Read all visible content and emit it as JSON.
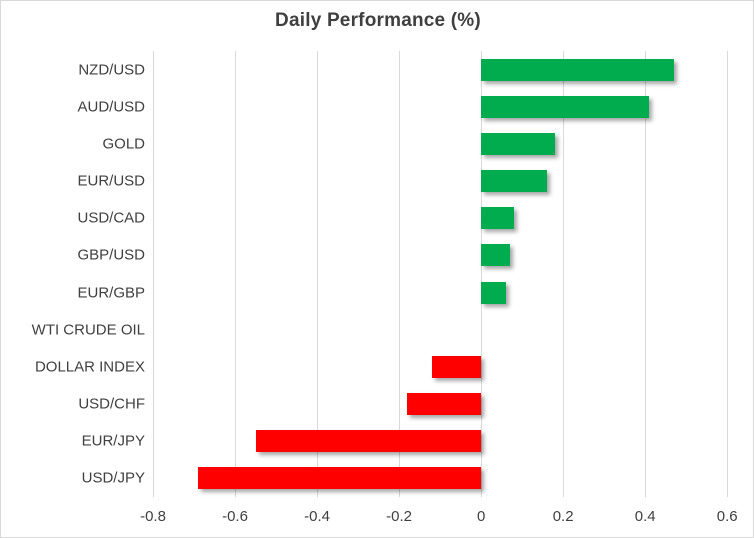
{
  "chart_data": {
    "type": "bar",
    "orientation": "horizontal",
    "title": "Daily Performance (%)",
    "categories": [
      "NZD/USD",
      "AUD/USD",
      "GOLD",
      "EUR/USD",
      "USD/CAD",
      "GBP/USD",
      "EUR/GBP",
      "WTI CRUDE OIL",
      "DOLLAR INDEX",
      "USD/CHF",
      "EUR/JPY",
      "USD/JPY"
    ],
    "values": [
      0.47,
      0.41,
      0.18,
      0.16,
      0.08,
      0.07,
      0.06,
      0.0,
      -0.12,
      -0.18,
      -0.55,
      -0.69
    ],
    "xlabel": "",
    "ylabel": "",
    "xlim": [
      -0.8,
      0.658
    ],
    "x_ticks": [
      -0.8,
      -0.6,
      -0.4,
      -0.2,
      0,
      0.2,
      0.4,
      0.6
    ],
    "x_tick_labels": [
      "-0.8",
      "-0.6",
      "-0.4",
      "-0.2",
      "0",
      "0.2",
      "0.4",
      "0.6"
    ],
    "grid": true,
    "legend": false,
    "positive_color": "#00AC4D",
    "negative_color": "#FF0000"
  },
  "colors": {
    "title_text": "#3F3F3F",
    "axis_text": "#404040",
    "gridline": "#D9D9D9",
    "background": "#FFFFFF",
    "border": "#D9D9D9"
  }
}
